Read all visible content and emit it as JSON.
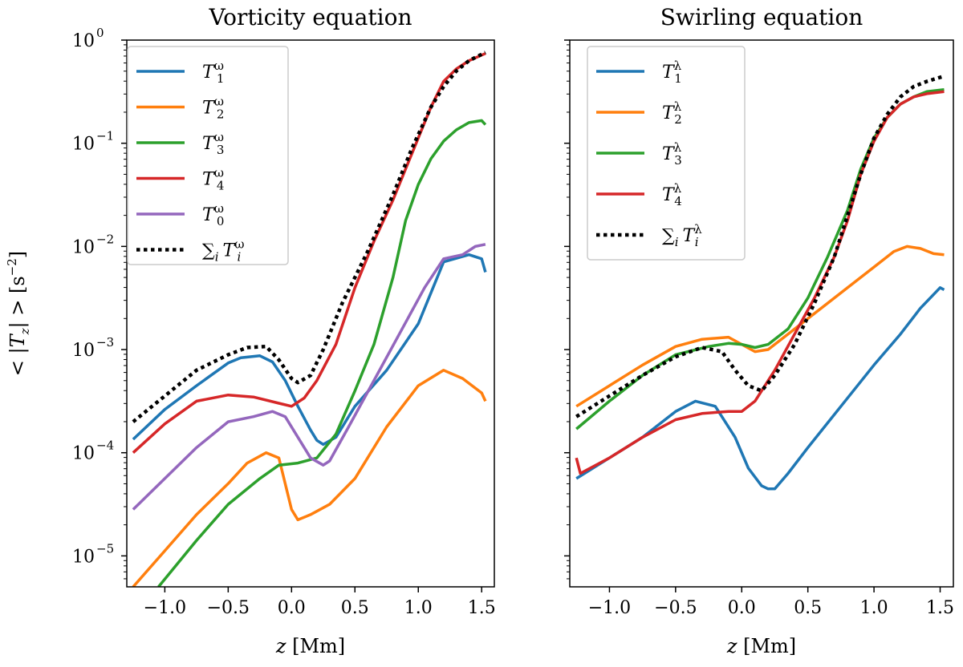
{
  "chart_data": [
    {
      "type": "line",
      "title": "Vorticity equation",
      "xlabel": "z [Mm]",
      "ylabel": "< |T_z| > [s^-2]",
      "xlim": [
        -1.3,
        1.6
      ],
      "ylim_log10": [
        -5.3,
        0
      ],
      "yscale": "log",
      "xticks": [
        -1.0,
        -0.5,
        0.0,
        0.5,
        1.0,
        1.5
      ],
      "xtick_labels": [
        "−1.0",
        "−0.5",
        "0.0",
        "0.5",
        "1.0",
        "1.5"
      ],
      "yticks_log10": [
        -5,
        -4,
        -3,
        -2,
        -1,
        0
      ],
      "ytick_exponents": [
        "−5",
        "−4",
        "−3",
        "−2",
        "−1",
        "0"
      ],
      "legend_position": "top-left",
      "series": [
        {
          "name": "T_1^ω",
          "base": "T",
          "sub": "1",
          "sup": "ω",
          "color": "#1f77b4",
          "dash": "solid",
          "x": [
            -1.25,
            -1.0,
            -0.75,
            -0.5,
            -0.4,
            -0.25,
            -0.15,
            -0.05,
            0.05,
            0.15,
            0.2,
            0.25,
            0.35,
            0.5,
            0.75,
            1.0,
            1.2,
            1.4,
            1.5,
            1.53
          ],
          "log10y": [
            -3.87,
            -3.58,
            -3.35,
            -3.13,
            -3.08,
            -3.06,
            -3.12,
            -3.3,
            -3.55,
            -3.78,
            -3.88,
            -3.92,
            -3.85,
            -3.55,
            -3.2,
            -2.75,
            -2.15,
            -2.08,
            -2.12,
            -2.25
          ]
        },
        {
          "name": "T_2^ω",
          "base": "T",
          "sub": "2",
          "sup": "ω",
          "color": "#ff7f0e",
          "dash": "solid",
          "x": [
            -1.25,
            -1.0,
            -0.75,
            -0.5,
            -0.35,
            -0.2,
            -0.1,
            -0.05,
            0.0,
            0.05,
            0.15,
            0.3,
            0.5,
            0.75,
            1.0,
            1.2,
            1.35,
            1.5,
            1.53
          ],
          "log10y": [
            -5.3,
            -4.95,
            -4.6,
            -4.3,
            -4.1,
            -4.0,
            -4.05,
            -4.3,
            -4.55,
            -4.65,
            -4.6,
            -4.5,
            -4.25,
            -3.75,
            -3.35,
            -3.2,
            -3.28,
            -3.42,
            -3.5
          ]
        },
        {
          "name": "T_3^ω",
          "base": "T",
          "sub": "3",
          "sup": "ω",
          "color": "#2ca02c",
          "dash": "solid",
          "x": [
            -1.05,
            -0.75,
            -0.5,
            -0.25,
            -0.1,
            0.05,
            0.2,
            0.35,
            0.5,
            0.65,
            0.8,
            0.9,
            1.0,
            1.1,
            1.2,
            1.3,
            1.4,
            1.5,
            1.53
          ],
          "log10y": [
            -5.3,
            -4.85,
            -4.5,
            -4.25,
            -4.12,
            -4.1,
            -4.05,
            -3.82,
            -3.4,
            -2.95,
            -2.3,
            -1.75,
            -1.4,
            -1.15,
            -0.98,
            -0.87,
            -0.8,
            -0.78,
            -0.82
          ]
        },
        {
          "name": "T_4^ω",
          "base": "T",
          "sub": "4",
          "sup": "ω",
          "color": "#d62728",
          "dash": "solid",
          "x": [
            -1.25,
            -1.0,
            -0.75,
            -0.5,
            -0.3,
            -0.1,
            0.0,
            0.1,
            0.2,
            0.35,
            0.5,
            0.65,
            0.8,
            0.9,
            1.0,
            1.1,
            1.2,
            1.3,
            1.4,
            1.53
          ],
          "log10y": [
            -4.0,
            -3.72,
            -3.5,
            -3.44,
            -3.46,
            -3.52,
            -3.55,
            -3.47,
            -3.3,
            -2.95,
            -2.4,
            -1.95,
            -1.55,
            -1.25,
            -0.95,
            -0.65,
            -0.4,
            -0.28,
            -0.2,
            -0.13
          ]
        },
        {
          "name": "T_0^ω",
          "base": "T",
          "sub": "0",
          "sup": "ω",
          "color": "#9467bd",
          "dash": "solid",
          "x": [
            -1.25,
            -1.0,
            -0.75,
            -0.5,
            -0.3,
            -0.15,
            -0.05,
            0.05,
            0.15,
            0.25,
            0.3,
            0.45,
            0.65,
            0.85,
            1.05,
            1.2,
            1.35,
            1.45,
            1.53
          ],
          "log10y": [
            -4.55,
            -4.25,
            -3.95,
            -3.7,
            -3.65,
            -3.6,
            -3.65,
            -3.85,
            -4.05,
            -4.12,
            -4.08,
            -3.75,
            -3.3,
            -2.85,
            -2.4,
            -2.12,
            -2.08,
            -2.0,
            -1.98
          ]
        },
        {
          "name": "∑_i T_i^ω",
          "base": "∑",
          "sub": "i",
          "sup": "",
          "tail": {
            "base": "T",
            "sub": "i",
            "sup": "ω"
          },
          "color": "#000000",
          "dash": "dotted",
          "x": [
            -1.25,
            -1.0,
            -0.75,
            -0.5,
            -0.35,
            -0.2,
            -0.1,
            0.0,
            0.05,
            0.15,
            0.25,
            0.4,
            0.6,
            0.8,
            0.95,
            1.1,
            1.2,
            1.3,
            1.4,
            1.53
          ],
          "log10y": [
            -3.7,
            -3.45,
            -3.2,
            -3.05,
            -2.98,
            -2.97,
            -3.1,
            -3.28,
            -3.32,
            -3.25,
            -3.0,
            -2.55,
            -2.05,
            -1.5,
            -1.05,
            -0.65,
            -0.45,
            -0.3,
            -0.2,
            -0.12
          ]
        }
      ]
    },
    {
      "type": "line",
      "title": "Swirling equation",
      "xlabel": "z [Mm]",
      "ylabel": "",
      "xlim": [
        -1.3,
        1.6
      ],
      "ylim_log10": [
        -5.3,
        0
      ],
      "yscale": "log",
      "xticks": [
        -1.0,
        -0.5,
        0.0,
        0.5,
        1.0,
        1.5
      ],
      "xtick_labels": [
        "−1.0",
        "−0.5",
        "0.0",
        "0.5",
        "1.0",
        "1.5"
      ],
      "yticks_log10": [
        -5,
        -4,
        -3,
        -2,
        -1,
        0
      ],
      "ytick_exponents": [
        "",
        "",
        "",
        "",
        "",
        ""
      ],
      "legend_position": "top-left",
      "series": [
        {
          "name": "T_1^λ",
          "base": "T",
          "sub": "1",
          "sup": "λ",
          "color": "#1f77b4",
          "dash": "solid",
          "x": [
            -1.25,
            -1.0,
            -0.75,
            -0.5,
            -0.35,
            -0.2,
            -0.05,
            0.05,
            0.15,
            0.2,
            0.25,
            0.35,
            0.5,
            0.75,
            1.0,
            1.2,
            1.35,
            1.5,
            1.53
          ],
          "log10y": [
            -4.25,
            -4.05,
            -3.85,
            -3.6,
            -3.5,
            -3.55,
            -3.85,
            -4.15,
            -4.32,
            -4.35,
            -4.35,
            -4.2,
            -3.95,
            -3.55,
            -3.15,
            -2.85,
            -2.6,
            -2.4,
            -2.42
          ]
        },
        {
          "name": "T_2^λ",
          "base": "T",
          "sub": "2",
          "sup": "λ",
          "color": "#ff7f0e",
          "dash": "solid",
          "x": [
            -1.25,
            -1.0,
            -0.75,
            -0.5,
            -0.3,
            -0.1,
            0.0,
            0.1,
            0.2,
            0.35,
            0.5,
            0.75,
            1.0,
            1.15,
            1.25,
            1.35,
            1.45,
            1.53
          ],
          "log10y": [
            -3.55,
            -3.35,
            -3.15,
            -2.97,
            -2.9,
            -2.88,
            -2.95,
            -3.02,
            -3.0,
            -2.85,
            -2.7,
            -2.45,
            -2.2,
            -2.05,
            -2.0,
            -2.02,
            -2.07,
            -2.08
          ]
        },
        {
          "name": "T_3^λ",
          "base": "T",
          "sub": "3",
          "sup": "λ",
          "color": "#2ca02c",
          "dash": "solid",
          "x": [
            -1.25,
            -1.0,
            -0.75,
            -0.5,
            -0.25,
            -0.1,
            0.0,
            0.1,
            0.2,
            0.35,
            0.5,
            0.65,
            0.8,
            0.9,
            1.0,
            1.1,
            1.2,
            1.3,
            1.4,
            1.53
          ],
          "log10y": [
            -3.77,
            -3.5,
            -3.25,
            -3.05,
            -2.97,
            -2.94,
            -2.95,
            -2.98,
            -2.95,
            -2.8,
            -2.5,
            -2.1,
            -1.65,
            -1.25,
            -0.95,
            -0.75,
            -0.62,
            -0.55,
            -0.5,
            -0.48
          ]
        },
        {
          "name": "T_4^λ",
          "base": "T",
          "sub": "4",
          "sup": "λ",
          "color": "#d62728",
          "dash": "solid",
          "x": [
            -1.25,
            -1.22,
            -1.0,
            -0.75,
            -0.5,
            -0.3,
            -0.1,
            0.0,
            0.1,
            0.25,
            0.4,
            0.55,
            0.7,
            0.8,
            0.9,
            1.0,
            1.1,
            1.2,
            1.3,
            1.4,
            1.53
          ],
          "log10y": [
            -4.05,
            -4.2,
            -4.05,
            -3.85,
            -3.68,
            -3.62,
            -3.6,
            -3.6,
            -3.5,
            -3.2,
            -2.85,
            -2.5,
            -2.1,
            -1.75,
            -1.3,
            -0.98,
            -0.75,
            -0.62,
            -0.55,
            -0.52,
            -0.5
          ]
        },
        {
          "name": "∑_i T_i^λ",
          "base": "∑",
          "sub": "i",
          "sup": "",
          "tail": {
            "base": "T",
            "sub": "i",
            "sup": "λ"
          },
          "color": "#000000",
          "dash": "dotted",
          "x": [
            -1.25,
            -1.0,
            -0.75,
            -0.5,
            -0.3,
            -0.15,
            -0.05,
            0.05,
            0.15,
            0.25,
            0.4,
            0.55,
            0.7,
            0.8,
            0.9,
            1.0,
            1.1,
            1.2,
            1.3,
            1.4,
            1.53
          ],
          "log10y": [
            -3.65,
            -3.45,
            -3.25,
            -3.07,
            -2.98,
            -3.02,
            -3.2,
            -3.35,
            -3.4,
            -3.25,
            -2.95,
            -2.55,
            -2.1,
            -1.7,
            -1.3,
            -0.95,
            -0.72,
            -0.55,
            -0.45,
            -0.4,
            -0.35
          ]
        }
      ]
    }
  ]
}
